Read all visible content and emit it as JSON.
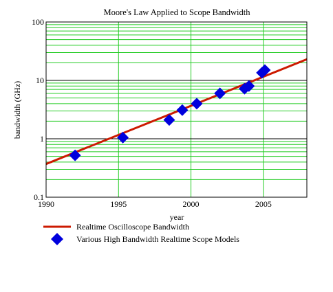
{
  "chart_data": {
    "type": "scatter",
    "title": "Moore's Law Applied to Scope Bandwidth",
    "xlabel": "year",
    "ylabel": "bandwidth (GHz)",
    "xlim": [
      1990,
      2008
    ],
    "ylim": [
      0.1,
      100
    ],
    "y_scale": "log",
    "x_ticks": [
      1990,
      1995,
      2000,
      2005
    ],
    "x_tick_labels": [
      "1990",
      "1995",
      "2000",
      "2005"
    ],
    "y_ticks": [
      0.1,
      1,
      10,
      100
    ],
    "y_tick_labels": [
      "0.1",
      "1",
      "10",
      "100"
    ],
    "grid": true,
    "legend_position": "bottom",
    "series": [
      {
        "name": "Realtime Oscilloscope Bandwidth",
        "type": "line",
        "color": "#cc1a00",
        "x": [
          1990,
          2008
        ],
        "y": [
          0.37,
          23
        ]
      },
      {
        "name": "Various High Bandwidth Realtime Scope Models",
        "type": "scatter",
        "marker": "diamond",
        "color": "#0000dd",
        "x": [
          1992.0,
          1995.3,
          1998.5,
          1999.4,
          2000.4,
          2002.0,
          2003.7,
          2004.0,
          2004.9,
          2005.1
        ],
        "y": [
          0.52,
          1.05,
          2.1,
          3.1,
          4.0,
          6.0,
          7.2,
          8.0,
          13.5,
          15.0
        ]
      }
    ],
    "colors": {
      "grid": "#22cc22",
      "frame": "#000000"
    }
  }
}
